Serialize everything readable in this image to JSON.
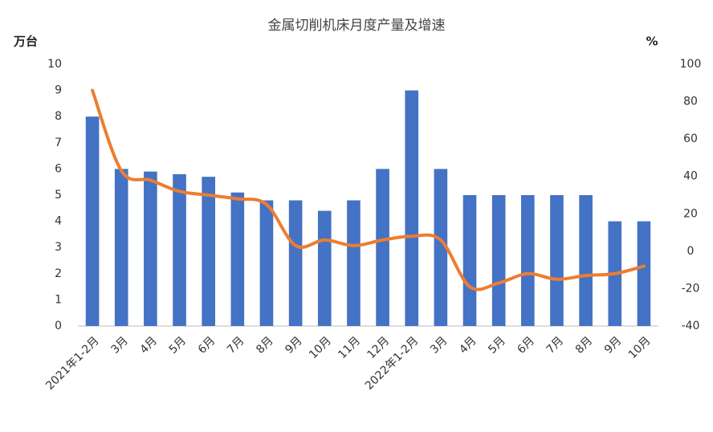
{
  "chart_data": {
    "type": "bar-line",
    "title": "金属切削机床月度产量及增速",
    "y_label": "万台",
    "y2_label": "%",
    "categories": [
      "2021年1-2月",
      "3月",
      "4月",
      "5月",
      "6月",
      "7月",
      "8月",
      "9月",
      "10月",
      "11月",
      "12月",
      "2022年1-2月",
      "3月",
      "4月",
      "5月",
      "6月",
      "7月",
      "8月",
      "9月",
      "10月"
    ],
    "series": [
      {
        "type": "bar",
        "color": "#4472c4",
        "values": [
          8,
          6,
          5.9,
          5.8,
          5.7,
          5.1,
          4.8,
          4.8,
          4.4,
          4.8,
          6,
          9,
          6,
          5,
          5,
          5,
          5,
          5,
          4,
          4
        ]
      },
      {
        "type": "line",
        "axis": "y2",
        "color": "#ed7d31",
        "values": [
          86,
          43,
          38,
          32,
          30,
          28,
          25,
          3,
          6,
          3,
          6,
          8,
          6,
          -19,
          -17,
          -12,
          -15,
          -13,
          -12,
          -8
        ]
      }
    ],
    "ylim": [
      0,
      10
    ],
    "yticks": [
      0,
      1,
      2,
      3,
      4,
      5,
      6,
      7,
      8,
      9,
      10
    ],
    "y2lim": [
      -40,
      100
    ],
    "y2ticks": [
      -40,
      -20,
      0,
      20,
      40,
      60,
      80,
      100
    ],
    "grid": false
  }
}
